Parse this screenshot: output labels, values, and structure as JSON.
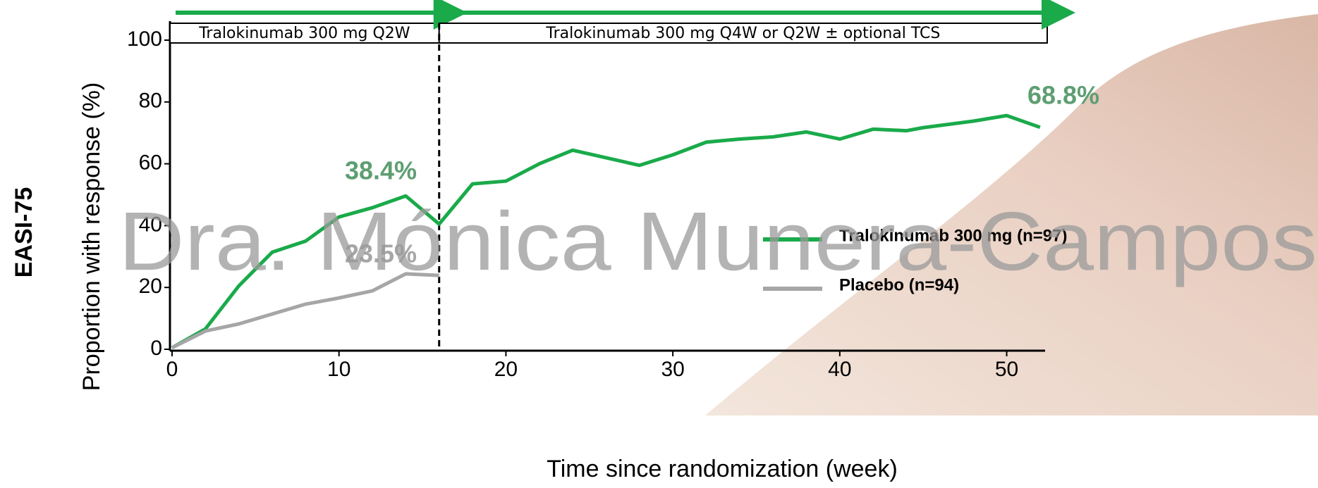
{
  "chart_data": {
    "type": "line",
    "row_label": "EASI-75",
    "y_label": "Proportion with response (%)",
    "x_label": "Time since randomization (week)",
    "xlim": [
      0,
      52.3
    ],
    "xticks": [
      0,
      10,
      20,
      30,
      40,
      50
    ],
    "ylim": [
      0,
      100
    ],
    "yticks": [
      0,
      20,
      40,
      60,
      80,
      100
    ],
    "phases": [
      {
        "label": "Tralokinumab 300 mg Q2W",
        "xlim": [
          0,
          16
        ]
      },
      {
        "label": "Tralokinumab 300 mg Q4W or Q2W ± optional TCS",
        "xlim": [
          16,
          52.3
        ]
      }
    ],
    "series": [
      {
        "name": "Tralokinumab 300 mg (n=97)",
        "color": "#1aaa4a",
        "x": [
          0,
          2,
          4,
          6,
          8,
          10,
          12,
          14,
          16,
          18,
          20,
          22,
          24,
          28,
          30,
          32,
          34,
          36,
          38,
          40,
          42,
          44,
          45,
          48,
          50,
          52
        ],
        "values": [
          0.5,
          6.6,
          20.5,
          31.4,
          35,
          42.8,
          45.8,
          49.6,
          40.5,
          53.5,
          54.4,
          60,
          64.4,
          59.5,
          62.9,
          67,
          68,
          68.7,
          70.3,
          68,
          71.2,
          70.7,
          71.7,
          73.8,
          75.6,
          71.8
        ]
      },
      {
        "name": "Placebo (n=94)",
        "color": "#a6a6a6",
        "x": [
          0,
          2,
          4,
          6,
          8,
          10,
          12,
          14,
          16
        ],
        "values": [
          0.5,
          5.9,
          8.2,
          11.4,
          14.6,
          16.6,
          18.9,
          24.4,
          23.9
        ]
      }
    ],
    "annotations": [
      {
        "text": "38.4%",
        "color": "#5e9e72"
      },
      {
        "text": "23.5%",
        "color": "#a6a6a6"
      },
      {
        "text": "68.8%",
        "color": "#5e9e72"
      }
    ],
    "watermark": "Dra. Mónica Munera-Campos"
  }
}
